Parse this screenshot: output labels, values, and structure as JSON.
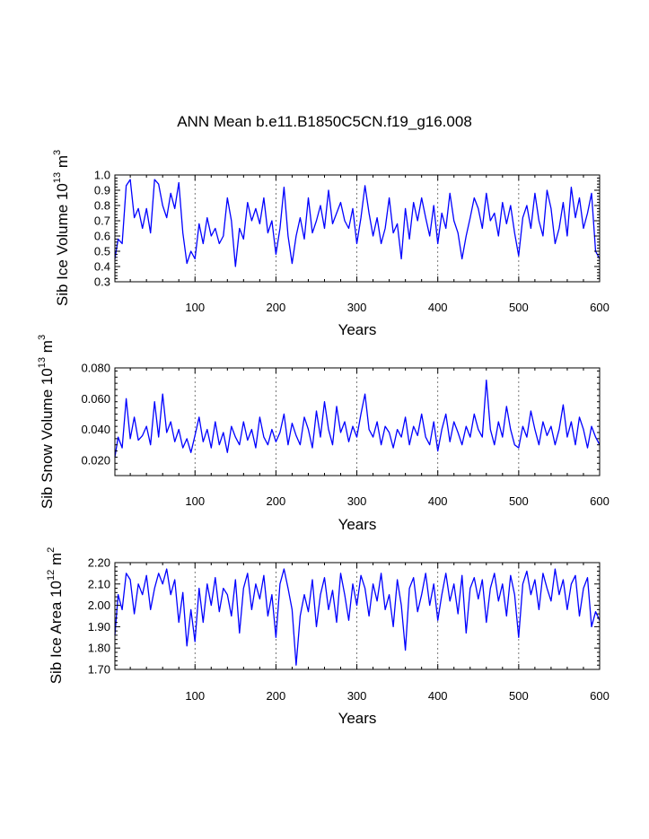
{
  "title": "ANN Mean b.e11.B1850C5CN.f19_g16.008",
  "colors": {
    "series": "#0000ff",
    "axis": "#000000",
    "grid": "#555555"
  },
  "chart_data": [
    {
      "type": "line",
      "title": "ANN Mean b.e11.B1850C5CN.f19_g16.008",
      "xlabel": "Years",
      "ylabel_main": "Sib Ice Volume 10",
      "ylabel_exp": "13",
      "ylabel_unit": "m",
      "ylabel_unit_exp": "3",
      "xlim": [
        1,
        600
      ],
      "ylim": [
        0.3,
        1.0
      ],
      "x_ticks": [
        100,
        200,
        300,
        400,
        500,
        600
      ],
      "x_tick_labels": [
        "100",
        "200",
        "300",
        "400",
        "500",
        "600"
      ],
      "y_ticks": [
        0.3,
        0.4,
        0.5,
        0.6,
        0.7,
        0.8,
        0.9,
        1.0
      ],
      "y_tick_labels": [
        "0.3",
        "0.4",
        "0.5",
        "0.6",
        "0.7",
        "0.8",
        "0.9",
        "1.0"
      ],
      "grid": "vertical dashed at x ticks",
      "series": [
        {
          "name": "Sib Ice Volume",
          "x": [
            1,
            5,
            10,
            15,
            20,
            25,
            30,
            35,
            40,
            45,
            50,
            55,
            60,
            65,
            70,
            75,
            80,
            85,
            90,
            95,
            100,
            105,
            110,
            115,
            120,
            125,
            130,
            135,
            140,
            145,
            150,
            155,
            160,
            165,
            170,
            175,
            180,
            185,
            190,
            195,
            200,
            205,
            210,
            215,
            220,
            225,
            230,
            235,
            240,
            245,
            250,
            255,
            260,
            265,
            270,
            275,
            280,
            285,
            290,
            295,
            300,
            305,
            310,
            315,
            320,
            325,
            330,
            335,
            340,
            345,
            350,
            355,
            360,
            365,
            370,
            375,
            380,
            385,
            390,
            395,
            400,
            405,
            410,
            415,
            420,
            425,
            430,
            435,
            440,
            445,
            450,
            455,
            460,
            465,
            470,
            475,
            480,
            485,
            490,
            495,
            500,
            505,
            510,
            515,
            520,
            525,
            530,
            535,
            540,
            545,
            550,
            555,
            560,
            565,
            570,
            575,
            580,
            585,
            590,
            595,
            600
          ],
          "values": [
            0.45,
            0.58,
            0.55,
            0.93,
            0.97,
            0.72,
            0.78,
            0.65,
            0.78,
            0.62,
            0.97,
            0.94,
            0.8,
            0.72,
            0.88,
            0.78,
            0.95,
            0.62,
            0.42,
            0.5,
            0.45,
            0.68,
            0.55,
            0.72,
            0.6,
            0.65,
            0.55,
            0.6,
            0.85,
            0.7,
            0.4,
            0.65,
            0.58,
            0.82,
            0.7,
            0.78,
            0.68,
            0.85,
            0.62,
            0.7,
            0.48,
            0.65,
            0.92,
            0.6,
            0.42,
            0.6,
            0.72,
            0.58,
            0.85,
            0.62,
            0.7,
            0.8,
            0.65,
            0.9,
            0.68,
            0.75,
            0.82,
            0.7,
            0.65,
            0.78,
            0.55,
            0.72,
            0.93,
            0.75,
            0.6,
            0.72,
            0.55,
            0.65,
            0.85,
            0.62,
            0.68,
            0.45,
            0.78,
            0.58,
            0.82,
            0.7,
            0.85,
            0.72,
            0.6,
            0.8,
            0.55,
            0.75,
            0.65,
            0.88,
            0.7,
            0.62,
            0.45,
            0.6,
            0.72,
            0.85,
            0.78,
            0.65,
            0.88,
            0.7,
            0.75,
            0.6,
            0.82,
            0.68,
            0.8,
            0.62,
            0.47,
            0.72,
            0.8,
            0.65,
            0.88,
            0.7,
            0.6,
            0.9,
            0.78,
            0.55,
            0.65,
            0.82,
            0.6,
            0.92,
            0.72,
            0.85,
            0.65,
            0.75,
            0.88,
            0.5,
            0.45
          ]
        }
      ]
    },
    {
      "type": "line",
      "xlabel": "Years",
      "ylabel_main": "Sib Snow Volume 10",
      "ylabel_exp": "13",
      "ylabel_unit": "m",
      "ylabel_unit_exp": "3",
      "xlim": [
        1,
        600
      ],
      "ylim": [
        0.01,
        0.08
      ],
      "x_ticks": [
        100,
        200,
        300,
        400,
        500,
        600
      ],
      "x_tick_labels": [
        "100",
        "200",
        "300",
        "400",
        "500",
        "600"
      ],
      "y_ticks": [
        0.02,
        0.04,
        0.06,
        0.08
      ],
      "y_tick_labels": [
        "0.020",
        "0.040",
        "0.060",
        "0.080"
      ],
      "grid": "vertical dashed at x ticks",
      "series": [
        {
          "name": "Sib Snow Volume",
          "x": [
            1,
            5,
            10,
            15,
            20,
            25,
            30,
            35,
            40,
            45,
            50,
            55,
            60,
            65,
            70,
            75,
            80,
            85,
            90,
            95,
            100,
            105,
            110,
            115,
            120,
            125,
            130,
            135,
            140,
            145,
            150,
            155,
            160,
            165,
            170,
            175,
            180,
            185,
            190,
            195,
            200,
            205,
            210,
            215,
            220,
            225,
            230,
            235,
            240,
            245,
            250,
            255,
            260,
            265,
            270,
            275,
            280,
            285,
            290,
            295,
            300,
            305,
            310,
            315,
            320,
            325,
            330,
            335,
            340,
            345,
            350,
            355,
            360,
            365,
            370,
            375,
            380,
            385,
            390,
            395,
            400,
            405,
            410,
            415,
            420,
            425,
            430,
            435,
            440,
            445,
            450,
            455,
            460,
            465,
            470,
            475,
            480,
            485,
            490,
            495,
            500,
            505,
            510,
            515,
            520,
            525,
            530,
            535,
            540,
            545,
            550,
            555,
            560,
            565,
            570,
            575,
            580,
            585,
            590,
            595,
            600
          ],
          "values": [
            0.022,
            0.035,
            0.028,
            0.06,
            0.034,
            0.048,
            0.033,
            0.036,
            0.042,
            0.03,
            0.058,
            0.035,
            0.063,
            0.038,
            0.045,
            0.032,
            0.04,
            0.028,
            0.034,
            0.025,
            0.036,
            0.048,
            0.032,
            0.04,
            0.028,
            0.045,
            0.03,
            0.038,
            0.025,
            0.042,
            0.035,
            0.03,
            0.045,
            0.033,
            0.04,
            0.028,
            0.048,
            0.035,
            0.03,
            0.04,
            0.032,
            0.038,
            0.05,
            0.03,
            0.044,
            0.036,
            0.03,
            0.048,
            0.04,
            0.028,
            0.052,
            0.035,
            0.058,
            0.04,
            0.03,
            0.055,
            0.038,
            0.045,
            0.032,
            0.042,
            0.035,
            0.05,
            0.063,
            0.04,
            0.035,
            0.045,
            0.03,
            0.042,
            0.038,
            0.028,
            0.04,
            0.035,
            0.048,
            0.03,
            0.042,
            0.036,
            0.05,
            0.035,
            0.03,
            0.045,
            0.026,
            0.04,
            0.05,
            0.032,
            0.045,
            0.038,
            0.03,
            0.042,
            0.035,
            0.05,
            0.04,
            0.035,
            0.072,
            0.04,
            0.03,
            0.045,
            0.035,
            0.055,
            0.04,
            0.03,
            0.028,
            0.042,
            0.035,
            0.052,
            0.04,
            0.03,
            0.045,
            0.036,
            0.042,
            0.03,
            0.04,
            0.056,
            0.035,
            0.045,
            0.03,
            0.048,
            0.04,
            0.028,
            0.042,
            0.035,
            0.03
          ]
        }
      ]
    },
    {
      "type": "line",
      "xlabel": "Years",
      "ylabel_main": "Sib Ice Area 10",
      "ylabel_exp": "12",
      "ylabel_unit": "m",
      "ylabel_unit_exp": "2",
      "xlim": [
        1,
        600
      ],
      "ylim": [
        1.7,
        2.2
      ],
      "x_ticks": [
        100,
        200,
        300,
        400,
        500,
        600
      ],
      "x_tick_labels": [
        "100",
        "200",
        "300",
        "400",
        "500",
        "600"
      ],
      "y_ticks": [
        1.7,
        1.8,
        1.9,
        2.0,
        2.1,
        2.2
      ],
      "y_tick_labels": [
        "1.70",
        "1.80",
        "1.90",
        "2.00",
        "2.10",
        "2.20"
      ],
      "grid": "vertical dashed at x ticks",
      "series": [
        {
          "name": "Sib Ice Area",
          "x": [
            1,
            5,
            10,
            15,
            20,
            25,
            30,
            35,
            40,
            45,
            50,
            55,
            60,
            65,
            70,
            75,
            80,
            85,
            90,
            95,
            100,
            105,
            110,
            115,
            120,
            125,
            130,
            135,
            140,
            145,
            150,
            155,
            160,
            165,
            170,
            175,
            180,
            185,
            190,
            195,
            200,
            205,
            210,
            215,
            220,
            225,
            230,
            235,
            240,
            245,
            250,
            255,
            260,
            265,
            270,
            275,
            280,
            285,
            290,
            295,
            300,
            305,
            310,
            315,
            320,
            325,
            330,
            335,
            340,
            345,
            350,
            355,
            360,
            365,
            370,
            375,
            380,
            385,
            390,
            395,
            400,
            405,
            410,
            415,
            420,
            425,
            430,
            435,
            440,
            445,
            450,
            455,
            460,
            465,
            470,
            475,
            480,
            485,
            490,
            495,
            500,
            505,
            510,
            515,
            520,
            525,
            530,
            535,
            540,
            545,
            550,
            555,
            560,
            565,
            570,
            575,
            580,
            585,
            590,
            595,
            600
          ],
          "values": [
            1.86,
            2.05,
            1.98,
            2.15,
            2.12,
            1.96,
            2.1,
            2.05,
            2.14,
            1.98,
            2.08,
            2.15,
            2.1,
            2.17,
            2.05,
            2.12,
            1.92,
            2.06,
            1.81,
            1.98,
            1.83,
            2.08,
            1.92,
            2.1,
            2.0,
            2.13,
            1.97,
            2.08,
            2.05,
            1.95,
            2.12,
            1.87,
            2.08,
            2.15,
            1.98,
            2.1,
            2.03,
            2.14,
            1.95,
            2.05,
            1.85,
            2.1,
            2.17,
            2.08,
            1.98,
            1.72,
            1.95,
            2.05,
            1.97,
            2.12,
            1.9,
            2.05,
            2.13,
            1.98,
            2.07,
            1.92,
            2.15,
            2.05,
            1.93,
            2.1,
            2.0,
            2.14,
            2.08,
            1.95,
            2.1,
            2.02,
            2.15,
            1.98,
            2.05,
            1.9,
            2.12,
            2.0,
            1.79,
            2.08,
            2.13,
            1.97,
            2.05,
            2.15,
            2.0,
            2.1,
            1.93,
            2.05,
            2.15,
            2.02,
            2.1,
            1.96,
            2.14,
            1.87,
            2.08,
            2.13,
            2.03,
            2.12,
            1.92,
            2.08,
            2.15,
            2.02,
            2.1,
            1.95,
            2.14,
            2.05,
            1.85,
            2.1,
            2.16,
            2.05,
            2.12,
            1.98,
            2.15,
            2.08,
            2.02,
            2.17,
            2.05,
            2.12,
            1.98,
            2.1,
            2.14,
            1.95,
            2.08,
            2.13,
            1.9,
            1.97,
            1.93
          ]
        }
      ]
    }
  ]
}
